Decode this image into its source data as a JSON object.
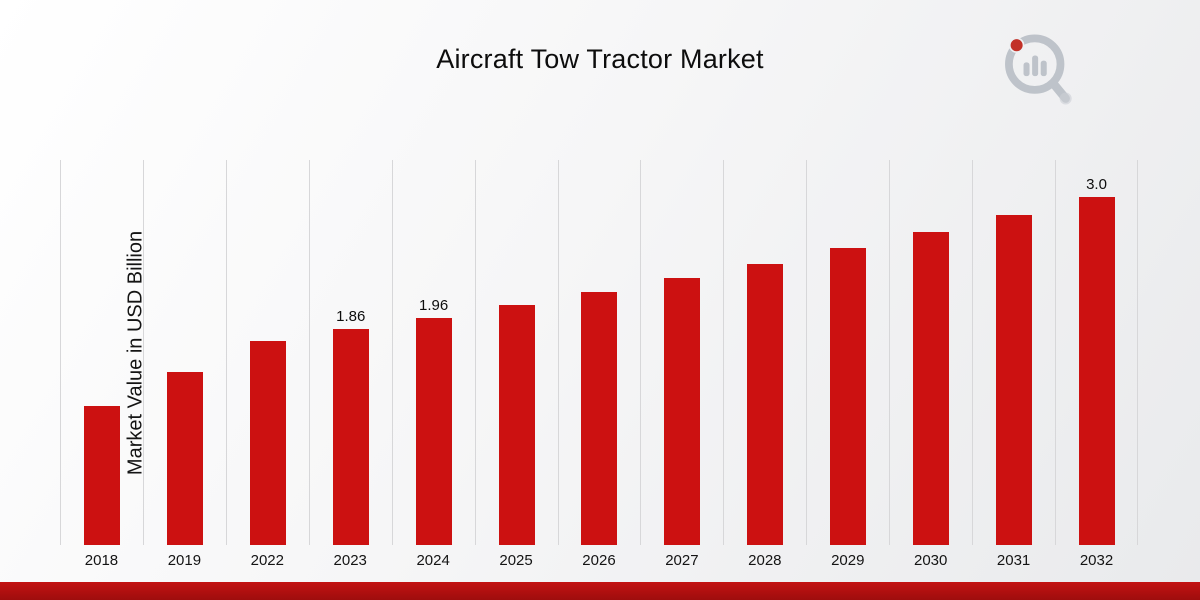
{
  "title": "Aircraft Tow Tractor Market",
  "chart_data": {
    "type": "bar",
    "title": "Aircraft Tow Tractor Market",
    "ylabel": "Market Value in USD Billion",
    "xlabel": "",
    "categories": [
      "2018",
      "2019",
      "2022",
      "2023",
      "2024",
      "2025",
      "2026",
      "2027",
      "2028",
      "2029",
      "2030",
      "2031",
      "2032"
    ],
    "values": [
      1.2,
      1.49,
      1.76,
      1.86,
      1.96,
      2.07,
      2.18,
      2.3,
      2.42,
      2.56,
      2.7,
      2.85,
      3.0
    ],
    "data_labels": [
      "",
      "",
      "",
      "1.86",
      "1.96",
      "",
      "",
      "",
      "",
      "",
      "",
      "",
      "3.0"
    ],
    "ylim": [
      0,
      3.32
    ],
    "bar_color": "#cc1111",
    "grid": "vertical-only",
    "legend": "none"
  },
  "branding": {
    "logo": "market-research-future-logo",
    "logo_gray": "#bcc1c8",
    "logo_red": "#c0271e"
  },
  "footer": {
    "accent_color": "#b31010"
  }
}
